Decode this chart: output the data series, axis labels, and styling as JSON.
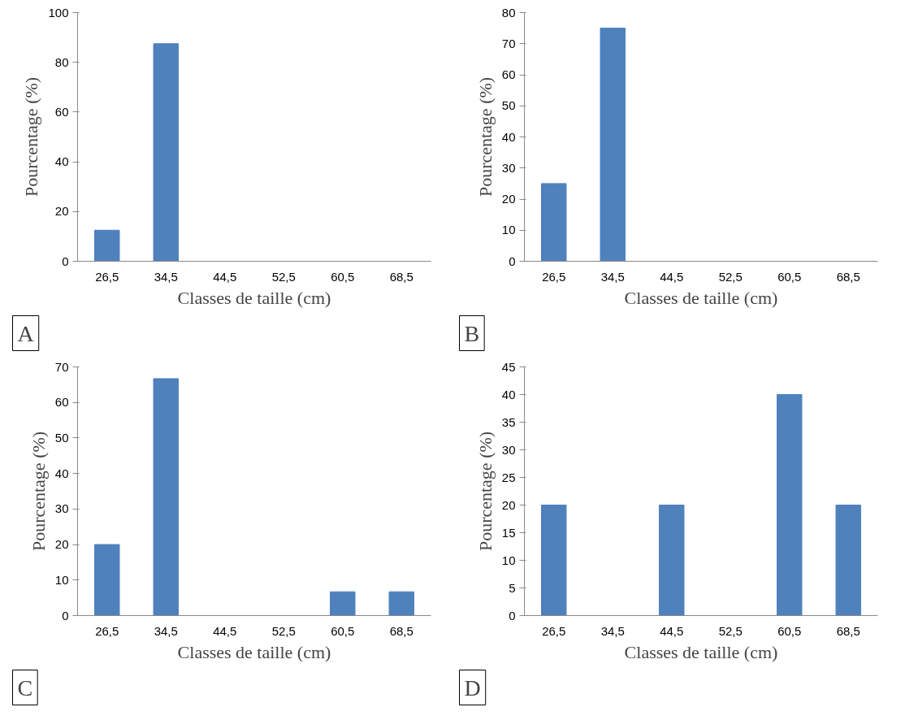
{
  "chart_data": [
    {
      "type": "bar",
      "categories": [
        "26,5",
        "34,5",
        "44,5",
        "52,5",
        "60,5",
        "68,5"
      ],
      "values": [
        12.5,
        87.5,
        0,
        0,
        0,
        0
      ],
      "color": "#4f81bd",
      "xlabel": "Classes de taille (cm)",
      "ylabel": "Pourcentage (%)",
      "ylim": [
        0,
        100
      ],
      "yticks": [
        0,
        20,
        40,
        60,
        80,
        100
      ],
      "grid": false,
      "annotations": [
        "A"
      ]
    },
    {
      "type": "bar",
      "categories": [
        "26,5",
        "34,5",
        "44,5",
        "52,5",
        "60,5",
        "68,5"
      ],
      "values": [
        25,
        75,
        0,
        0,
        0,
        0
      ],
      "color": "#4f81bd",
      "xlabel": "Classes de taille (cm)",
      "ylabel": "Pourcentage (%)",
      "ylim": [
        0,
        80
      ],
      "yticks": [
        0,
        10,
        20,
        30,
        40,
        50,
        60,
        70,
        80
      ],
      "grid": false,
      "annotations": [
        "B"
      ]
    },
    {
      "type": "bar",
      "categories": [
        "26,5",
        "34,5",
        "44,5",
        "52,5",
        "60,5",
        "68,5"
      ],
      "values": [
        20,
        66.7,
        0,
        0,
        6.7,
        6.7
      ],
      "color": "#4f81bd",
      "xlabel": "Classes de taille (cm)",
      "ylabel": "Pourcentage (%)",
      "ylim": [
        0,
        70
      ],
      "yticks": [
        0,
        10,
        20,
        30,
        40,
        50,
        60,
        70
      ],
      "grid": false,
      "annotations": [
        "C"
      ]
    },
    {
      "type": "bar",
      "categories": [
        "26,5",
        "34,5",
        "44,5",
        "52,5",
        "60,5",
        "68,5"
      ],
      "values": [
        20,
        0,
        20,
        0,
        40,
        20
      ],
      "color": "#4f81bd",
      "xlabel": "Classes de taille (cm)",
      "ylabel": "Pourcentage (%)",
      "ylim": [
        0,
        45
      ],
      "yticks": [
        0,
        5,
        10,
        15,
        20,
        25,
        30,
        35,
        40,
        45
      ],
      "grid": false,
      "annotations": [
        "D"
      ]
    }
  ]
}
